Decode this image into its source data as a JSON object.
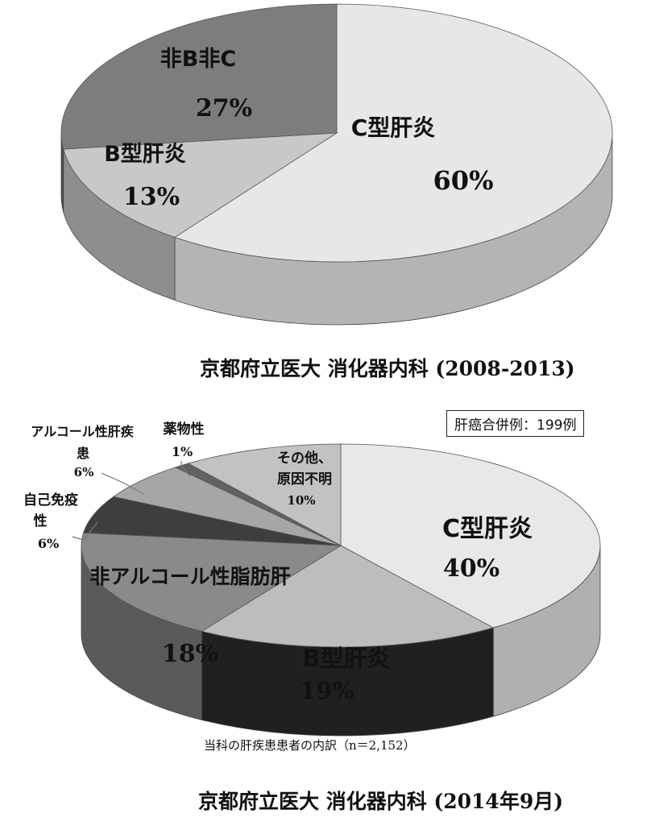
{
  "chart_data": [
    {
      "type": "pie",
      "title": "",
      "caption": {
        "text": "京都府立医大 消化器内科 ",
        "range": "(2008-2013)"
      },
      "slices": [
        {
          "label": "C型肝炎",
          "value_label": "60%",
          "value": 60,
          "color": "#e7e7e7",
          "side": "#b4b4b4"
        },
        {
          "label": "B型肝炎",
          "value_label": "13%",
          "value": 13,
          "color": "#c8c8c8",
          "side": "#8e8e8e"
        },
        {
          "label": "非B非C",
          "value_label": "27%",
          "value": 27,
          "color": "#7d7d7d",
          "side": "#4e4e4e"
        }
      ]
    },
    {
      "type": "pie",
      "title": "",
      "caption": {
        "text": "京都府立医大 消化器内科 ",
        "range": "(2014年9月)"
      },
      "note": "当科の肝疾患患者の内訳（n＝2,152）",
      "count_label": "肝癌合併例：199例",
      "slices": [
        {
          "label": "C型肝炎",
          "value_label": "40%",
          "value": 40,
          "color": "#e8e8e8",
          "side": "#b0b0b0"
        },
        {
          "label": "B型肝炎",
          "value_label": "19%",
          "value": 19,
          "color": "#bdbdbd",
          "side": "#202020"
        },
        {
          "label": "非アルコール性脂肪肝",
          "value_label": "18%",
          "value": 18,
          "color": "#8a8a8a",
          "side": "#5a5a5a"
        },
        {
          "label": "自己免疫性",
          "value_label": "6%",
          "value": 6,
          "color": "#3e3e3e",
          "side": "#262626"
        },
        {
          "label": "アルコール性肝疾患",
          "value_label": "6%",
          "value": 6,
          "color": "#a6a6a6",
          "side": "#6f6f6f"
        },
        {
          "label": "薬物性",
          "value_label": "1%",
          "value": 1,
          "color": "#626262",
          "side": "#444444"
        },
        {
          "label": "その他、原因不明",
          "value_label": "10%",
          "value": 10,
          "color": "#c2c2c2",
          "side": "#8c8c8c"
        }
      ]
    }
  ]
}
